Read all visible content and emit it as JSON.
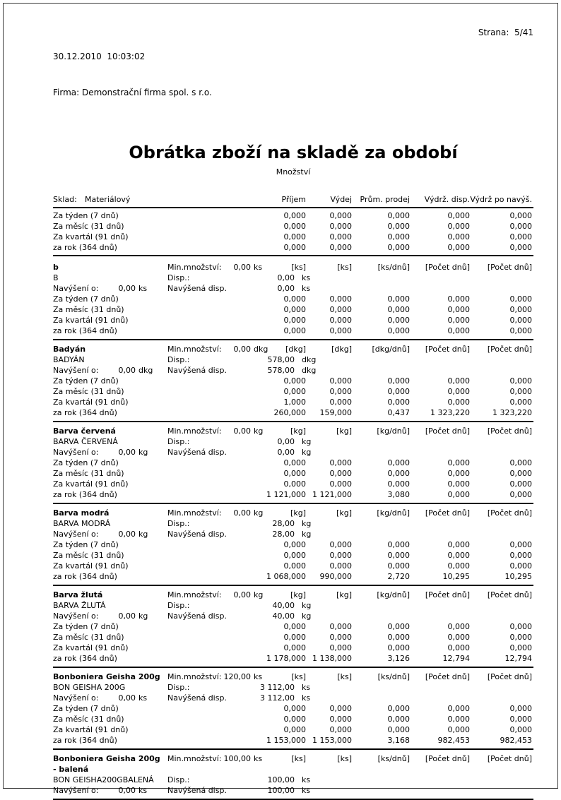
{
  "header": {
    "datetime": "30.12.2010  10:03:02",
    "company": "Firma: Demonstrační firma spol. s r.o.",
    "page": "Strana:  5/41",
    "title": "Obrátka zboží na skladě za období",
    "subtitle": "Množství"
  },
  "table": {
    "sklad_label": "Sklad:",
    "sklad_value": "Materiálový",
    "columns": [
      "Příjem",
      "Výdej",
      "Prům. prodej",
      "Výdrž. disp.",
      "Výdrž po navýš."
    ],
    "period_labels": [
      "Za týden (7 dnů)",
      "Za měsíc (31 dnů)",
      "Za kvartál (91 dnů)",
      "za rok (364 dnů)"
    ],
    "labels": {
      "min": "Min.množství:",
      "disp": "Disp.:",
      "navyseni": "Navýšení o:",
      "navysena": "Navýšená disp."
    },
    "summary_rows": [
      [
        "0,000",
        "0,000",
        "0,000",
        "0,000",
        "0,000"
      ],
      [
        "0,000",
        "0,000",
        "0,000",
        "0,000",
        "0,000"
      ],
      [
        "0,000",
        "0,000",
        "0,000",
        "0,000",
        "0,000"
      ],
      [
        "0,000",
        "0,000",
        "0,000",
        "0,000",
        "0,000"
      ]
    ],
    "blocks": [
      {
        "name": "b",
        "code": "B",
        "unit": "ks",
        "min_value": "0,00",
        "disp_value": "0,00",
        "navyseni_value": "0,00",
        "navysena_value": "0,00",
        "units_row": [
          "[ks]",
          "[ks]",
          "[ks/dnů]",
          "[Počet dnů]",
          "[Počet dnů]"
        ],
        "rows": [
          [
            "0,000",
            "0,000",
            "0,000",
            "0,000",
            "0,000"
          ],
          [
            "0,000",
            "0,000",
            "0,000",
            "0,000",
            "0,000"
          ],
          [
            "0,000",
            "0,000",
            "0,000",
            "0,000",
            "0,000"
          ],
          [
            "0,000",
            "0,000",
            "0,000",
            "0,000",
            "0,000"
          ]
        ]
      },
      {
        "name": "Badyán",
        "code": "BADYÁN",
        "unit": "dkg",
        "min_value": "0,00",
        "disp_value": "578,00",
        "navyseni_value": "0,00",
        "navysena_value": "578,00",
        "units_row": [
          "[dkg]",
          "[dkg]",
          "[dkg/dnů]",
          "[Počet dnů]",
          "[Počet dnů]"
        ],
        "rows": [
          [
            "0,000",
            "0,000",
            "0,000",
            "0,000",
            "0,000"
          ],
          [
            "0,000",
            "0,000",
            "0,000",
            "0,000",
            "0,000"
          ],
          [
            "1,000",
            "0,000",
            "0,000",
            "0,000",
            "0,000"
          ],
          [
            "260,000",
            "159,000",
            "0,437",
            "1 323,220",
            "1 323,220"
          ]
        ]
      },
      {
        "name": "Barva červená",
        "code": "BARVA ČERVENÁ",
        "unit": "kg",
        "min_value": "0,00",
        "disp_value": "0,00",
        "navyseni_value": "0,00",
        "navysena_value": "0,00",
        "units_row": [
          "[kg]",
          "[kg]",
          "[kg/dnů]",
          "[Počet dnů]",
          "[Počet dnů]"
        ],
        "rows": [
          [
            "0,000",
            "0,000",
            "0,000",
            "0,000",
            "0,000"
          ],
          [
            "0,000",
            "0,000",
            "0,000",
            "0,000",
            "0,000"
          ],
          [
            "0,000",
            "0,000",
            "0,000",
            "0,000",
            "0,000"
          ],
          [
            "1 121,000",
            "1 121,000",
            "3,080",
            "0,000",
            "0,000"
          ]
        ]
      },
      {
        "name": "Barva modrá",
        "code": "BARVA MODRÁ",
        "unit": "kg",
        "min_value": "0,00",
        "disp_value": "28,00",
        "navyseni_value": "0,00",
        "navysena_value": "28,00",
        "units_row": [
          "[kg]",
          "[kg]",
          "[kg/dnů]",
          "[Počet dnů]",
          "[Počet dnů]"
        ],
        "rows": [
          [
            "0,000",
            "0,000",
            "0,000",
            "0,000",
            "0,000"
          ],
          [
            "0,000",
            "0,000",
            "0,000",
            "0,000",
            "0,000"
          ],
          [
            "0,000",
            "0,000",
            "0,000",
            "0,000",
            "0,000"
          ],
          [
            "1 068,000",
            "990,000",
            "2,720",
            "10,295",
            "10,295"
          ]
        ]
      },
      {
        "name": "Barva žlutá",
        "code": "BARVA ŽLUTÁ",
        "unit": "kg",
        "min_value": "0,00",
        "disp_value": "40,00",
        "navyseni_value": "0,00",
        "navysena_value": "40,00",
        "units_row": [
          "[kg]",
          "[kg]",
          "[kg/dnů]",
          "[Počet dnů]",
          "[Počet dnů]"
        ],
        "rows": [
          [
            "0,000",
            "0,000",
            "0,000",
            "0,000",
            "0,000"
          ],
          [
            "0,000",
            "0,000",
            "0,000",
            "0,000",
            "0,000"
          ],
          [
            "0,000",
            "0,000",
            "0,000",
            "0,000",
            "0,000"
          ],
          [
            "1 178,000",
            "1 138,000",
            "3,126",
            "12,794",
            "12,794"
          ]
        ]
      },
      {
        "name": "Bonboniera Geisha 200g",
        "code": "BON GEISHA 200G",
        "unit": "ks",
        "min_value": "120,00",
        "disp_value": "3 112,00",
        "navyseni_value": "0,00",
        "navysena_value": "3 112,00",
        "units_row": [
          "[ks]",
          "[ks]",
          "[ks/dnů]",
          "[Počet dnů]",
          "[Počet dnů]"
        ],
        "rows": [
          [
            "0,000",
            "0,000",
            "0,000",
            "0,000",
            "0,000"
          ],
          [
            "0,000",
            "0,000",
            "0,000",
            "0,000",
            "0,000"
          ],
          [
            "0,000",
            "0,000",
            "0,000",
            "0,000",
            "0,000"
          ],
          [
            "1 153,000",
            "1 153,000",
            "3,168",
            "982,453",
            "982,453"
          ]
        ]
      },
      {
        "name": "Bonboniera Geisha 200g - balená",
        "code": "BON GEISHA200GBALENÁ",
        "unit": "ks",
        "min_value": "100,00",
        "disp_value": "100,00",
        "navyseni_value": "0,00",
        "navysena_value": "100,00",
        "units_row": [
          "[ks]",
          "[ks]",
          "[ks/dnů]",
          "[Počet dnů]",
          "[Počet dnů]"
        ],
        "rows": []
      }
    ]
  }
}
